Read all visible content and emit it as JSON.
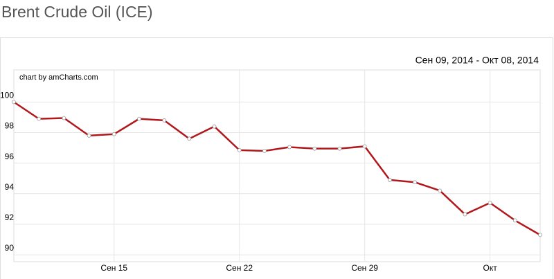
{
  "title": "Brent Crude Oil (ICE)",
  "chart_data": {
    "type": "line",
    "subtitle": "Сен 09, 2014 - Окт 08, 2014",
    "credit": "chart by amCharts.com",
    "categories": [
      null,
      null,
      null,
      null,
      "Сен 15",
      null,
      null,
      null,
      null,
      "Сен 22",
      null,
      null,
      null,
      null,
      "Сен 29",
      null,
      null,
      null,
      null,
      "Окт",
      null,
      null
    ],
    "series": [
      {
        "color": "#b0181c",
        "values": [
          100.0,
          98.9,
          98.95,
          97.8,
          97.9,
          98.9,
          98.8,
          97.6,
          98.4,
          96.85,
          96.8,
          97.05,
          96.95,
          96.95,
          97.1,
          94.9,
          94.75,
          94.2,
          92.65,
          93.4,
          92.25,
          91.3
        ]
      }
    ],
    "ylim": [
      89.55,
      102.1
    ],
    "yticks": [
      90,
      92,
      94,
      96,
      98,
      100
    ],
    "grid": true
  }
}
